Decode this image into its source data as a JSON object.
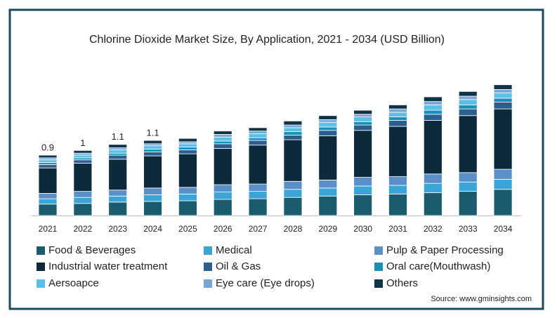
{
  "chart_data": {
    "type": "stacked_bar",
    "title": "Chlorine Dioxide Market Size, By Application, 2021 - 2034 (USD Billion)",
    "categories": [
      "2021",
      "2022",
      "2023",
      "2024",
      "2025",
      "2026",
      "2027",
      "2028",
      "2029",
      "2030",
      "2031",
      "2032",
      "2033",
      "2034"
    ],
    "series": [
      {
        "name": "Food & Beverages",
        "color": "#1a5b6e",
        "values": [
          0.17,
          0.18,
          0.2,
          0.21,
          0.22,
          0.24,
          0.25,
          0.27,
          0.29,
          0.31,
          0.32,
          0.34,
          0.36,
          0.39
        ]
      },
      {
        "name": "Medical",
        "color": "#3aa6d8",
        "values": [
          0.08,
          0.09,
          0.09,
          0.1,
          0.1,
          0.11,
          0.11,
          0.12,
          0.12,
          0.13,
          0.13,
          0.14,
          0.14,
          0.15
        ]
      },
      {
        "name": "Pulp & Paper Processing",
        "color": "#5a8fc8",
        "values": [
          0.08,
          0.09,
          0.09,
          0.1,
          0.1,
          0.11,
          0.11,
          0.12,
          0.12,
          0.13,
          0.13,
          0.14,
          0.14,
          0.15
        ]
      },
      {
        "name": "Industrial water treatment",
        "color": "#0d2a3a",
        "values": [
          0.38,
          0.42,
          0.46,
          0.48,
          0.5,
          0.54,
          0.58,
          0.62,
          0.66,
          0.7,
          0.75,
          0.8,
          0.85,
          0.9
        ]
      },
      {
        "name": "Oil & Gas",
        "color": "#2a5f8f",
        "values": [
          0.05,
          0.05,
          0.06,
          0.06,
          0.06,
          0.07,
          0.07,
          0.07,
          0.08,
          0.08,
          0.09,
          0.09,
          0.1,
          0.1
        ]
      },
      {
        "name": "Oral care(Mouthwash)",
        "color": "#1b8fb8",
        "values": [
          0.03,
          0.03,
          0.03,
          0.04,
          0.04,
          0.04,
          0.04,
          0.05,
          0.05,
          0.05,
          0.05,
          0.06,
          0.06,
          0.06
        ]
      },
      {
        "name": "Aersoapce",
        "color": "#5bbfe8",
        "values": [
          0.04,
          0.04,
          0.05,
          0.05,
          0.05,
          0.06,
          0.06,
          0.06,
          0.07,
          0.07,
          0.07,
          0.08,
          0.08,
          0.08
        ]
      },
      {
        "name": "Eye care (Eye drops)",
        "color": "#7aa6d6",
        "values": [
          0.03,
          0.03,
          0.03,
          0.03,
          0.03,
          0.04,
          0.04,
          0.04,
          0.04,
          0.04,
          0.05,
          0.05,
          0.05,
          0.05
        ]
      },
      {
        "name": "Others",
        "color": "#0e3446",
        "values": [
          0.04,
          0.04,
          0.05,
          0.05,
          0.05,
          0.05,
          0.05,
          0.06,
          0.06,
          0.06,
          0.06,
          0.07,
          0.07,
          0.07
        ]
      }
    ],
    "total_labels": [
      0.9,
      1,
      1.1,
      1.1,
      null,
      null,
      null,
      null,
      null,
      null,
      null,
      null,
      null,
      null
    ],
    "source": "Source: www.gminsights.com"
  }
}
